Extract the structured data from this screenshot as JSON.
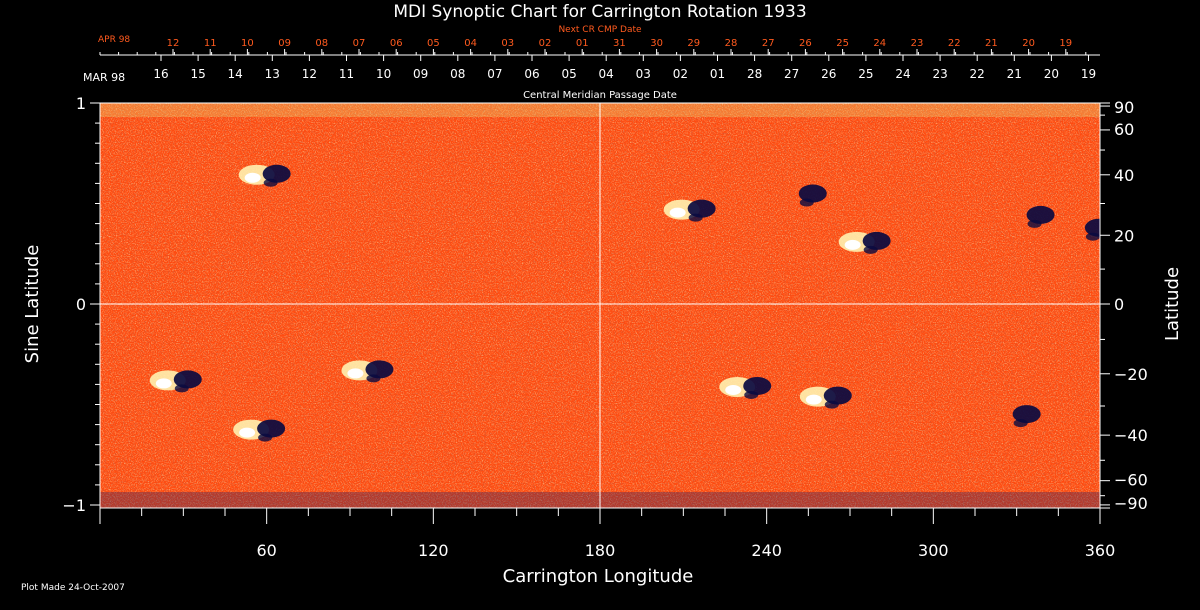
{
  "colors": {
    "background": "#000000",
    "foreground": "#ffffff",
    "accent": "#ff5a1e",
    "map_base": "#ff4a0f",
    "map_bright": "#fff2b0",
    "map_dark": "#0a0a40"
  },
  "chart_data": {
    "type": "heatmap",
    "title": "MDI Synoptic Chart for Carrington Rotation 1933",
    "xlabel": "Carrington Longitude",
    "ylabel_left": "Sine Latitude",
    "ylabel_right": "Latitude",
    "xlim": [
      0,
      360
    ],
    "ylim": [
      -1,
      1
    ],
    "x_ticks": [
      60,
      120,
      180,
      240,
      300,
      360
    ],
    "y_ticks_left": [
      {
        "value": 1,
        "label": "1"
      },
      {
        "value": 0,
        "label": "0"
      },
      {
        "value": -1,
        "label": "−1"
      }
    ],
    "y_ticks_right": [
      90,
      60,
      40,
      20,
      0,
      -20,
      -40,
      -60,
      -90
    ],
    "grid_lines": {
      "longitude": 180,
      "sine_latitude": 0
    },
    "top_axis_1": {
      "label": "Next CR CMP Date",
      "month_label": "APR 98",
      "ticks": [
        "12",
        "11",
        "10",
        "09",
        "08",
        "07",
        "06",
        "05",
        "04",
        "03",
        "02",
        "01",
        "31",
        "30",
        "29",
        "28",
        "27",
        "26",
        "25",
        "24",
        "23",
        "22",
        "21",
        "20",
        "19"
      ]
    },
    "top_axis_2": {
      "label": "Central Meridian Passage Date",
      "month_label": "MAR 98",
      "ticks": [
        "16",
        "15",
        "14",
        "13",
        "12",
        "11",
        "10",
        "09",
        "08",
        "07",
        "06",
        "05",
        "04",
        "03",
        "02",
        "01",
        "28",
        "27",
        "26",
        "25",
        "24",
        "23",
        "22",
        "21",
        "20",
        "19"
      ]
    },
    "active_regions": [
      {
        "lon": 60,
        "lat": 40,
        "polarity": "mixed"
      },
      {
        "lon": 28,
        "lat": -22,
        "polarity": "mixed"
      },
      {
        "lon": 58,
        "lat": -38,
        "polarity": "mixed"
      },
      {
        "lon": 97,
        "lat": -19,
        "polarity": "mixed"
      },
      {
        "lon": 213,
        "lat": 28,
        "polarity": "mixed"
      },
      {
        "lon": 253,
        "lat": 33,
        "polarity": "negative"
      },
      {
        "lon": 276,
        "lat": 18,
        "polarity": "mixed"
      },
      {
        "lon": 335,
        "lat": 26,
        "polarity": "negative"
      },
      {
        "lon": 356,
        "lat": 22,
        "polarity": "negative"
      },
      {
        "lon": 233,
        "lat": -24,
        "polarity": "mixed"
      },
      {
        "lon": 262,
        "lat": -27,
        "polarity": "mixed"
      },
      {
        "lon": 330,
        "lat": -33,
        "polarity": "negative"
      }
    ]
  },
  "footer": {
    "plot_made": "Plot Made 24-Oct-2007"
  }
}
